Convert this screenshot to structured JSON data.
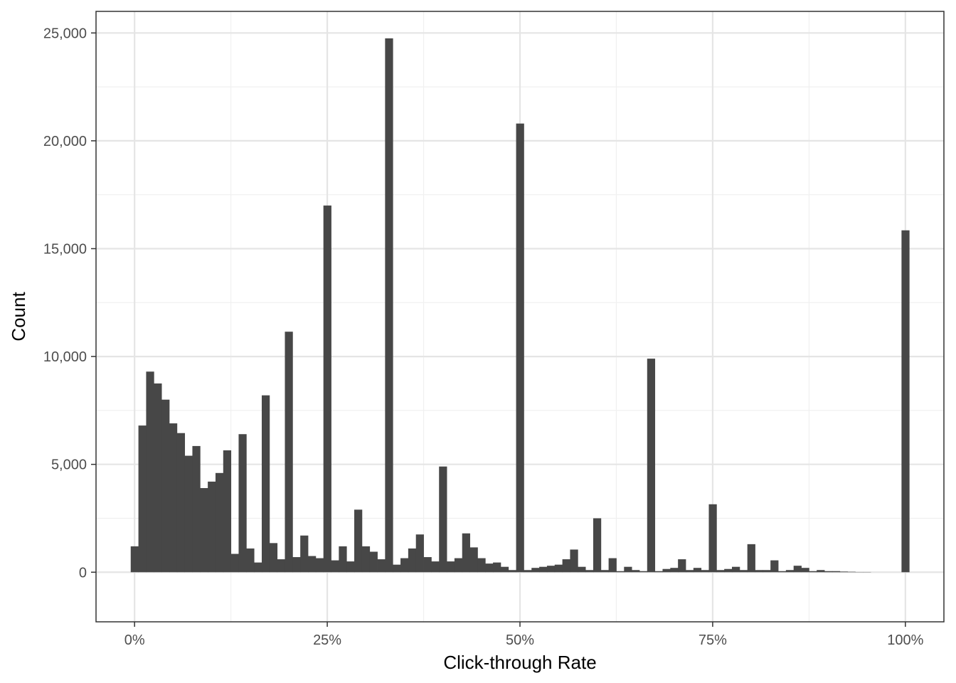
{
  "chart_data": {
    "type": "bar",
    "title": "",
    "xlabel": "Click-through Rate",
    "ylabel": "Count",
    "xlim": [
      -0.05,
      1.05
    ],
    "ylim": [
      -2300,
      26000
    ],
    "grid": true,
    "x_ticks": [
      {
        "value": 0,
        "label": "0%"
      },
      {
        "value": 0.25,
        "label": "25%"
      },
      {
        "value": 0.5,
        "label": "50%"
      },
      {
        "value": 0.75,
        "label": "75%"
      },
      {
        "value": 1,
        "label": "100%"
      }
    ],
    "y_ticks": [
      {
        "value": 0,
        "label": "0"
      },
      {
        "value": 5000,
        "label": "5,000"
      },
      {
        "value": 10000,
        "label": "10,000"
      },
      {
        "value": 15000,
        "label": "15,000"
      },
      {
        "value": 20000,
        "label": "20,000"
      },
      {
        "value": 25000,
        "label": "25,000"
      }
    ],
    "bin_width": 0.01,
    "x": [
      0,
      0.01,
      0.02,
      0.03,
      0.04,
      0.05,
      0.06,
      0.07,
      0.08,
      0.09,
      0.1,
      0.11,
      0.12,
      0.13,
      0.14,
      0.15,
      0.16,
      0.17,
      0.18,
      0.19,
      0.2,
      0.21,
      0.22,
      0.23,
      0.24,
      0.25,
      0.26,
      0.27,
      0.28,
      0.29,
      0.3,
      0.31,
      0.32,
      0.33,
      0.34,
      0.35,
      0.36,
      0.37,
      0.38,
      0.39,
      0.4,
      0.41,
      0.42,
      0.43,
      0.44,
      0.45,
      0.46,
      0.47,
      0.48,
      0.49,
      0.5,
      0.51,
      0.52,
      0.53,
      0.54,
      0.55,
      0.56,
      0.57,
      0.58,
      0.59,
      0.6,
      0.61,
      0.62,
      0.63,
      0.64,
      0.65,
      0.66,
      0.67,
      0.68,
      0.69,
      0.7,
      0.71,
      0.72,
      0.73,
      0.74,
      0.75,
      0.76,
      0.77,
      0.78,
      0.79,
      0.8,
      0.81,
      0.82,
      0.83,
      0.84,
      0.85,
      0.86,
      0.87,
      0.88,
      0.89,
      0.9,
      0.91,
      0.92,
      0.93,
      0.94,
      0.95,
      0.96,
      0.97,
      0.98,
      0.99,
      1
    ],
    "values": [
      1200,
      6800,
      9300,
      8750,
      8000,
      6900,
      6450,
      5400,
      5850,
      3900,
      4200,
      4600,
      5650,
      850,
      6400,
      1100,
      450,
      8200,
      1350,
      600,
      11150,
      700,
      1700,
      750,
      650,
      17000,
      550,
      1200,
      500,
      2900,
      1200,
      950,
      600,
      24750,
      350,
      650,
      1100,
      1750,
      700,
      500,
      4900,
      500,
      650,
      1800,
      1150,
      650,
      400,
      450,
      250,
      100,
      20800,
      100,
      200,
      250,
      300,
      350,
      600,
      1050,
      250,
      100,
      2500,
      100,
      650,
      50,
      250,
      100,
      50,
      9900,
      50,
      150,
      200,
      600,
      100,
      200,
      100,
      3150,
      100,
      150,
      250,
      100,
      1300,
      100,
      100,
      550,
      50,
      100,
      300,
      200,
      50,
      100,
      50,
      50,
      30,
      20,
      10,
      10,
      0,
      0,
      0,
      0,
      15850
    ]
  }
}
